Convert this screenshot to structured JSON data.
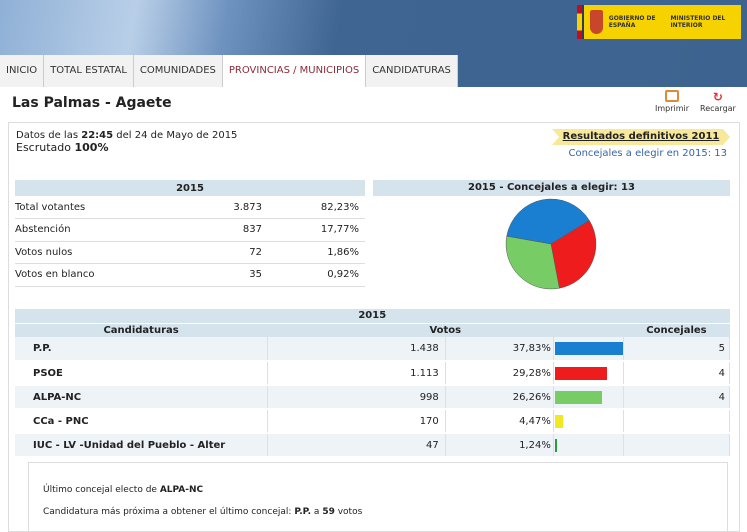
{
  "header": {
    "logo_text_1": "GOBIERNO DE ESPAÑA",
    "logo_text_2": "MINISTERIO DEL INTERIOR"
  },
  "tabs": [
    "INICIO",
    "TOTAL ESTATAL",
    "COMUNIDADES",
    "PROVINCIAS / MUNICIPIOS",
    "CANDIDATURAS"
  ],
  "active_tab": 3,
  "page_title": "Las Palmas - Agaete",
  "tools": {
    "print": "Imprimir",
    "reload": "Recargar"
  },
  "datos": {
    "prefix": "Datos de las",
    "time": "22:45",
    "date": "del 24 de Mayo de 2015",
    "escrutado_label": "Escrutado",
    "escrutado": "100%"
  },
  "links": {
    "resultados": "Resultados definitivos 2011",
    "concejales": "Concejales a elegir en 2015: 13"
  },
  "summary": {
    "header": "2015",
    "rows": [
      {
        "label": "Total votantes",
        "value": "3.873",
        "pct": "82,23%"
      },
      {
        "label": "Abstención",
        "value": "837",
        "pct": "17,77%"
      },
      {
        "label": "Votos nulos",
        "value": "72",
        "pct": "1,86%"
      },
      {
        "label": "Votos en blanco",
        "value": "35",
        "pct": "0,92%"
      }
    ]
  },
  "pie": {
    "header": "2015 - Concejales a elegir: 13"
  },
  "results": {
    "year": "2015",
    "col_cand": "Candidaturas",
    "col_votos": "Votos",
    "col_conc": "Concejales",
    "rows": [
      {
        "name": "P.P.",
        "votes": "1.438",
        "pct": "37,83%",
        "pctval": 37.83,
        "seats": "5",
        "color": "#1a7fd0"
      },
      {
        "name": "PSOE",
        "votes": "1.113",
        "pct": "29,28%",
        "pctval": 29.28,
        "seats": "4",
        "color": "#ee1c1c"
      },
      {
        "name": "ALPA-NC",
        "votes": "998",
        "pct": "26,26%",
        "pctval": 26.26,
        "seats": "4",
        "color": "#77cc66"
      },
      {
        "name": "CCa - PNC",
        "votes": "170",
        "pct": "4,47%",
        "pctval": 4.47,
        "seats": "",
        "color": "#f0e822"
      },
      {
        "name": "IUC - LV -Unidad del Pueblo - Alter",
        "votes": "47",
        "pct": "1,24%",
        "pctval": 1.24,
        "seats": "",
        "color": "#2a9a3a"
      }
    ]
  },
  "info": {
    "ultimo_prefix": "Último concejal electo de",
    "ultimo_party": "ALPA-NC",
    "proxima_prefix": "Candidatura más próxima a obtener el último concejal:",
    "proxima_party": "P.P.",
    "a": "a",
    "votos_num": "59",
    "votos": "votos"
  }
}
